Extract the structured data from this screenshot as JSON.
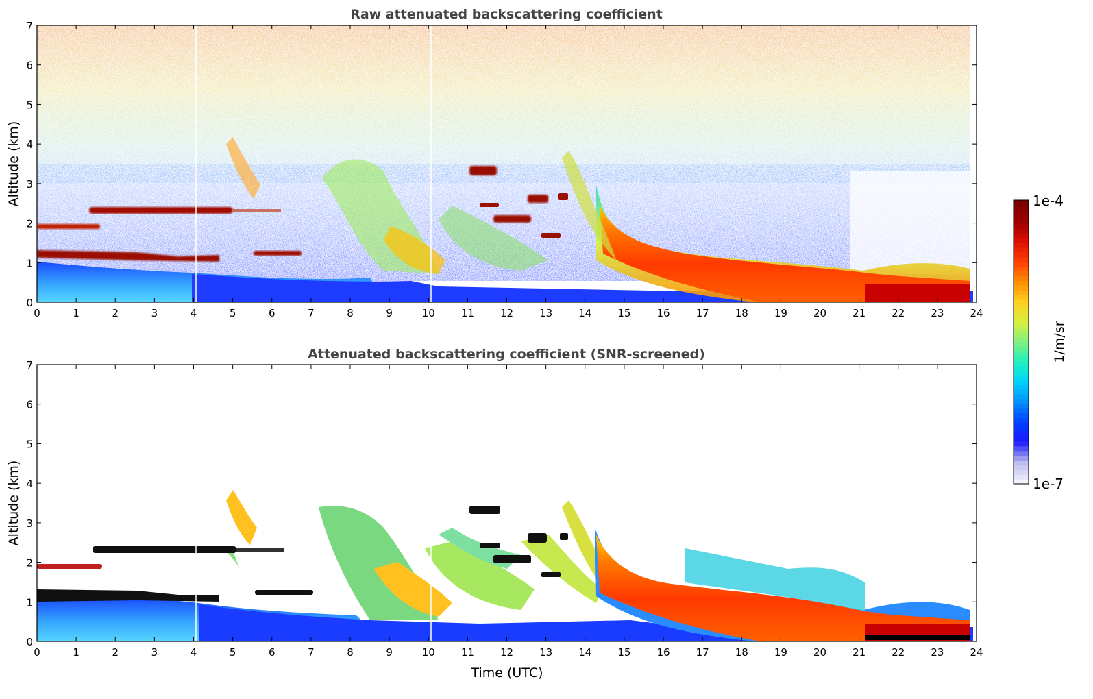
{
  "chart_data": [
    {
      "type": "heatmap",
      "title": "Raw attenuated backscattering coefficient",
      "xlabel": "",
      "ylabel": "Altitude (km)",
      "xlim": [
        0,
        24
      ],
      "ylim": [
        0,
        7
      ],
      "xticks": [
        "0",
        "1",
        "2",
        "3",
        "4",
        "5",
        "6",
        "7",
        "8",
        "9",
        "10",
        "11",
        "12",
        "13",
        "14",
        "15",
        "16",
        "17",
        "18",
        "19",
        "20",
        "21",
        "22",
        "23",
        "24"
      ],
      "yticks": [
        "0",
        "1",
        "2",
        "3",
        "4",
        "5",
        "6",
        "7"
      ],
      "features": [
        {
          "feature": "surface aerosol layer",
          "t": [
            0,
            8.5
          ],
          "z": [
            0,
            0.9
          ],
          "level": "blue"
        },
        {
          "feature": "elevated layer",
          "t": [
            1.3,
            6.2
          ],
          "z": [
            2.2,
            2.4
          ],
          "level": "dark red"
        },
        {
          "feature": "elevated layer",
          "t": [
            0,
            1.6
          ],
          "z": [
            1.8,
            1.95
          ],
          "level": "dark red"
        },
        {
          "feature": "elevated layer",
          "t": [
            0,
            4.6
          ],
          "z": [
            1.0,
            1.3
          ],
          "level": "dark red"
        },
        {
          "feature": "elevated layer",
          "t": [
            6.0,
            6.7
          ],
          "z": [
            1.2,
            1.3
          ],
          "level": "dark red"
        },
        {
          "feature": "cloud",
          "t": [
            11.0,
            11.7
          ],
          "z": [
            3.2,
            3.45
          ],
          "level": "dark red"
        },
        {
          "feature": "cloud",
          "t": [
            11.7,
            12.6
          ],
          "z": [
            2.0,
            2.2
          ],
          "level": "dark red"
        },
        {
          "feature": "cloud",
          "t": [
            12.6,
            13.1
          ],
          "z": [
            2.5,
            2.7
          ],
          "level": "dark red"
        },
        {
          "feature": "boundary layer",
          "t": [
            14.3,
            23.8
          ],
          "z": [
            0,
            2.0
          ],
          "level": "orange-red"
        },
        {
          "feature": "noisy background",
          "t": [
            0,
            24
          ],
          "z": [
            3,
            7
          ],
          "level": "speckled"
        }
      ]
    },
    {
      "type": "heatmap",
      "title": "Attenuated backscattering coefficient (SNR-screened)",
      "xlabel": "Time (UTC)",
      "ylabel": "Altitude (km)",
      "xlim": [
        0,
        24
      ],
      "ylim": [
        0,
        7
      ],
      "xticks": [
        "0",
        "1",
        "2",
        "3",
        "4",
        "5",
        "6",
        "7",
        "8",
        "9",
        "10",
        "11",
        "12",
        "13",
        "14",
        "15",
        "16",
        "17",
        "18",
        "19",
        "20",
        "21",
        "22",
        "23",
        "24"
      ],
      "yticks": [
        "0",
        "1",
        "2",
        "3",
        "4",
        "5",
        "6",
        "7"
      ],
      "features": [
        {
          "feature": "surface aerosol layer",
          "t": [
            0,
            8.5
          ],
          "z": [
            0,
            1.0
          ],
          "level": "blue"
        },
        {
          "feature": "elevated layer",
          "t": [
            1.5,
            6.2
          ],
          "z": [
            2.2,
            2.4
          ],
          "level": "black"
        },
        {
          "feature": "elevated layer",
          "t": [
            0,
            1.7
          ],
          "z": [
            1.8,
            1.95
          ],
          "level": "red"
        },
        {
          "feature": "elevated layer",
          "t": [
            0,
            4.6
          ],
          "z": [
            1.0,
            1.3
          ],
          "level": "black"
        },
        {
          "feature": "plume",
          "t": [
            4.9,
            5.4
          ],
          "z": [
            2.6,
            3.8
          ],
          "level": "yellow"
        },
        {
          "feature": "cloud",
          "t": [
            11.0,
            11.8
          ],
          "z": [
            3.2,
            3.45
          ],
          "level": "black"
        },
        {
          "feature": "boundary layer",
          "t": [
            14.3,
            23.8
          ],
          "z": [
            0,
            2.0
          ],
          "level": "orange-red"
        }
      ]
    }
  ],
  "colorbar": {
    "label": "1/m/sr",
    "max_label": "1e-4",
    "min_label": "1e-7",
    "stops": [
      "#f2f2fb",
      "#b9b9ee",
      "#1a1aff",
      "#0040ff",
      "#0090ff",
      "#00d2ff",
      "#20f0c0",
      "#80f080",
      "#d8f040",
      "#ffd020",
      "#ff9000",
      "#ff4000",
      "#e01000",
      "#a00000",
      "#7a0000"
    ]
  }
}
